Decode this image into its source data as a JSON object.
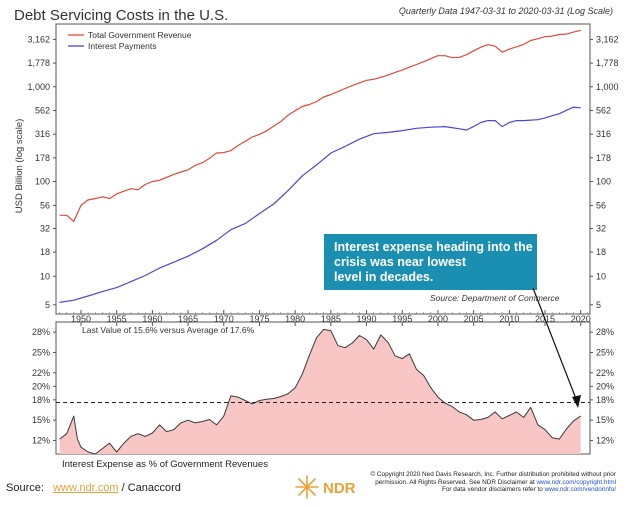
{
  "colors": {
    "revenue": "#e4473d",
    "interest": "#4a47d6",
    "area_fill": "#f9c6c6",
    "area_line": "#3a3a3a",
    "callout_bg": "#1a8fb1",
    "ndr_orange": "#e8a23a"
  },
  "chart_data": [
    {
      "type": "line",
      "title": "Debt Servicing Costs in the U.S.",
      "subtitle": "Quarterly Data 1947-03-31 to 2020-03-31 (Log Scale)",
      "ylabel": "USD Billion (log scale)",
      "yscale": "log",
      "ylim": [
        4,
        4600
      ],
      "xlim": [
        1946.5,
        2021.3
      ],
      "y_ticks": [
        5,
        10,
        18,
        32,
        56,
        100,
        178,
        316,
        562,
        1000,
        1778,
        3162
      ],
      "y_tick_labels": [
        "5",
        "10",
        "18",
        "32",
        "56",
        "100",
        "178",
        "316",
        "562",
        "1,000",
        "1,778",
        "3,162"
      ],
      "x_ticks": [
        1950,
        1955,
        1960,
        1965,
        1970,
        1975,
        1980,
        1985,
        1990,
        1995,
        2000,
        2005,
        2010,
        2015,
        2020
      ],
      "legend_position": "top-left",
      "source": "Source:  Department of Commerce",
      "annotation": "Interest expense heading into the crisis was near lowest level in decades.",
      "series": [
        {
          "name": "Total Government Revenue",
          "color": "#e4473d",
          "x": [
            1947,
            1948,
            1949,
            1950,
            1951,
            1952,
            1953,
            1954,
            1955,
            1956,
            1957,
            1958,
            1959,
            1960,
            1961,
            1962,
            1963,
            1964,
            1965,
            1966,
            1967,
            1968,
            1969,
            1970,
            1971,
            1972,
            1973,
            1974,
            1975,
            1976,
            1977,
            1978,
            1979,
            1980,
            1981,
            1982,
            1983,
            1984,
            1985,
            1986,
            1987,
            1988,
            1989,
            1990,
            1991,
            1992,
            1993,
            1994,
            1995,
            1996,
            1997,
            1998,
            1999,
            2000,
            2001,
            2002,
            2003,
            2004,
            2005,
            2006,
            2007,
            2008,
            2009,
            2010,
            2011,
            2012,
            2013,
            2014,
            2015,
            2016,
            2017,
            2018,
            2019,
            2020
          ],
          "values": [
            44,
            44,
            38,
            56,
            64,
            66,
            69,
            66,
            74,
            79,
            84,
            82,
            93,
            100,
            103,
            111,
            119,
            126,
            133,
            148,
            158,
            176,
            200,
            202,
            212,
            240,
            265,
            295,
            315,
            342,
            385,
            430,
            500,
            560,
            620,
            650,
            700,
            780,
            830,
            890,
            960,
            1030,
            1100,
            1170,
            1200,
            1260,
            1330,
            1420,
            1500,
            1610,
            1720,
            1840,
            1980,
            2130,
            2130,
            2030,
            2050,
            2180,
            2400,
            2620,
            2780,
            2680,
            2320,
            2500,
            2640,
            2800,
            3080,
            3220,
            3380,
            3430,
            3560,
            3600,
            3780,
            3950
          ]
        },
        {
          "name": "Interest Payments",
          "color": "#4a47d6",
          "x": [
            1947,
            1949,
            1951,
            1953,
            1955,
            1957,
            1959,
            1961,
            1963,
            1965,
            1967,
            1969,
            1971,
            1973,
            1975,
            1977,
            1979,
            1981,
            1983,
            1985,
            1987,
            1989,
            1991,
            1993,
            1995,
            1997,
            1999,
            2001,
            2003,
            2004,
            2005,
            2006,
            2007,
            2008,
            2009,
            2010,
            2011,
            2012,
            2013,
            2014,
            2015,
            2016,
            2017,
            2018,
            2019,
            2020
          ],
          "values": [
            5.3,
            5.6,
            6.2,
            6.9,
            7.6,
            8.8,
            10.2,
            12.2,
            14.1,
            16.3,
            19.5,
            24,
            31,
            36,
            46,
            58,
            80,
            115,
            150,
            200,
            235,
            280,
            320,
            330,
            345,
            365,
            375,
            380,
            360,
            350,
            380,
            420,
            440,
            440,
            380,
            420,
            440,
            440,
            445,
            450,
            470,
            495,
            520,
            565,
            610,
            600
          ]
        }
      ]
    },
    {
      "type": "area",
      "title": "Interest Expense as % of Government Revenues",
      "subtitle": "Last Value of 15.6% versus Average of 17.6%",
      "ylim": [
        10,
        29.5
      ],
      "xlim": [
        1946.5,
        2021.3
      ],
      "y_ticks": [
        12,
        15,
        18,
        20,
        22,
        25,
        28
      ],
      "y_tick_labels": [
        "12%",
        "15%",
        "18%",
        "20%",
        "22%",
        "25%",
        "28%"
      ],
      "average": 17.6,
      "last_value": 15.6,
      "x": [
        1947,
        1948,
        1949,
        1949.5,
        1950,
        1951,
        1952,
        1953,
        1954,
        1955,
        1956,
        1957,
        1958,
        1959,
        1960,
        1961,
        1962,
        1963,
        1964,
        1965,
        1966,
        1967,
        1968,
        1969,
        1970,
        1971,
        1972,
        1973,
        1974,
        1975,
        1976,
        1977,
        1978,
        1979,
        1980,
        1981,
        1982,
        1983,
        1984,
        1985,
        1986,
        1987,
        1988,
        1989,
        1990,
        1991,
        1992,
        1993,
        1994,
        1995,
        1996,
        1997,
        1998,
        1999,
        2000,
        2001,
        2002,
        2003,
        2004,
        2005,
        2006,
        2007,
        2008,
        2009,
        2010,
        2011,
        2012,
        2013,
        2014,
        2015,
        2016,
        2017,
        2018,
        2019,
        2020
      ],
      "values": [
        12.2,
        13.0,
        15.6,
        12.2,
        11.0,
        10.3,
        10.0,
        10.8,
        11.6,
        10.3,
        11.6,
        12.6,
        13.0,
        12.6,
        13.1,
        14.3,
        13.3,
        13.6,
        14.6,
        15.0,
        14.6,
        14.8,
        15.1,
        14.3,
        15.6,
        18.6,
        18.4,
        17.9,
        17.4,
        17.9,
        18.1,
        18.2,
        18.5,
        18.9,
        19.8,
        21.8,
        24.6,
        27.2,
        28.4,
        28.2,
        26.0,
        25.7,
        26.4,
        27.5,
        26.9,
        25.5,
        27.6,
        26.5,
        24.5,
        24.1,
        24.8,
        22.5,
        21.6,
        19.8,
        18.4,
        17.5,
        17.0,
        16.2,
        15.8,
        15.0,
        15.1,
        15.4,
        16.2,
        15.2,
        15.7,
        16.2,
        15.4,
        16.9,
        14.3,
        13.6,
        12.4,
        12.2,
        13.7,
        14.9,
        15.6
      ]
    }
  ],
  "footer": {
    "source_prefix": "Source:",
    "source_link": "www.ndr.com",
    "source_suffix": "/ Canaccord",
    "logo_text": "NDR",
    "copyright_1": "© Copyright 2020 Ned Davis Research, Inc. Further distribution prohibited without prior",
    "copyright_2a": "permission. All Rights Reserved. See NDR Disclaimer at",
    "copyright_2_link": "www.ndr.com/copyright.html",
    "copyright_3a": "For data vendor disclaimers refer to",
    "copyright_3_link": "www.ndr.com/vendorinfo/"
  }
}
